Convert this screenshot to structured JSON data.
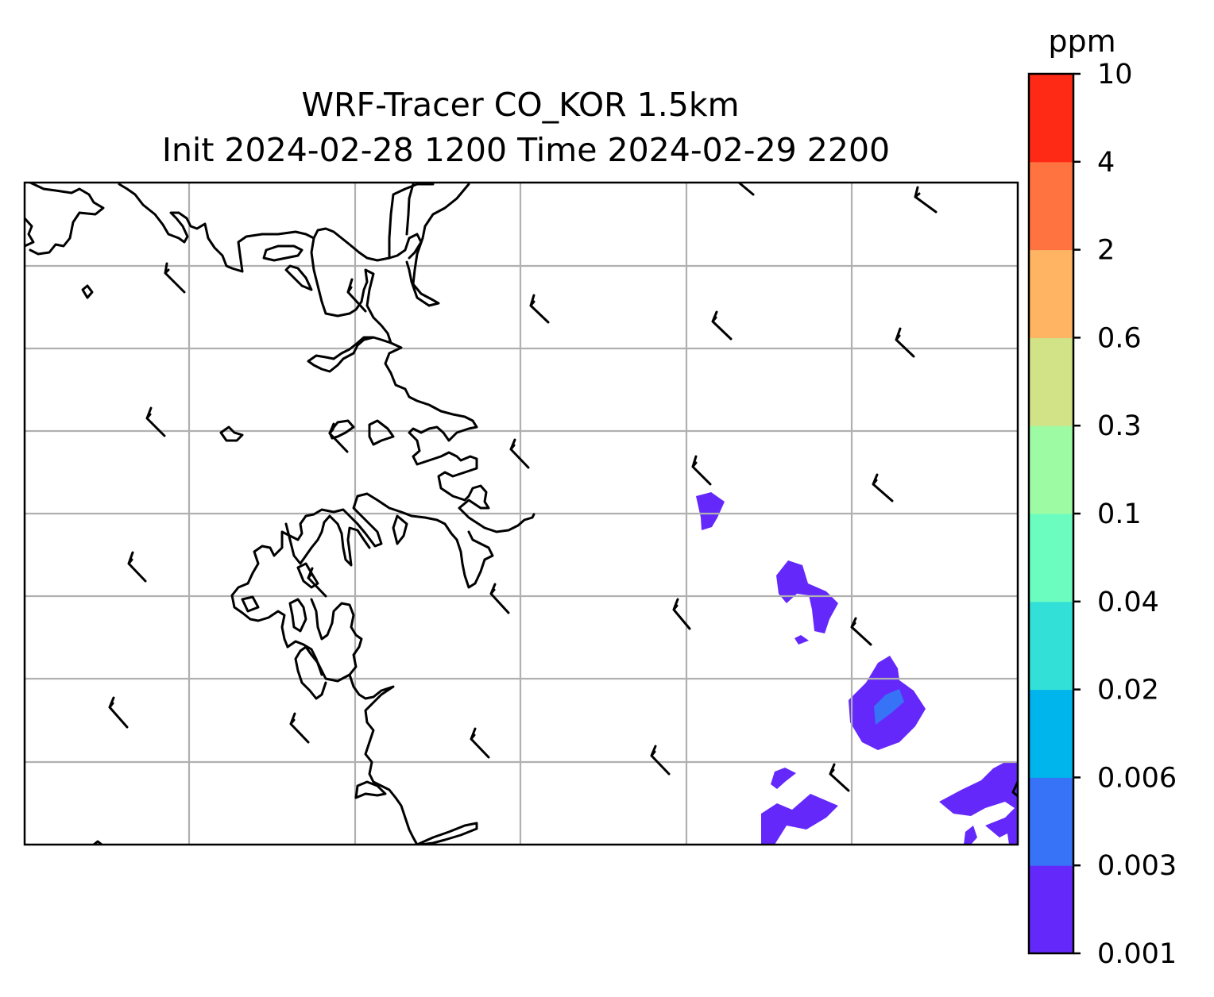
{
  "title": {
    "line1": "WRF-Tracer CO_KOR 1.5km",
    "line2": "Init 2024-02-28 1200 Time 2024-02-29 2200"
  },
  "colorbar": {
    "unit": "ppm",
    "levels": [
      "0.001",
      "0.003",
      "0.006",
      "0.02",
      "0.04",
      "0.1",
      "0.3",
      "0.6",
      "2",
      "4",
      "10"
    ],
    "colors": [
      "#6429fa",
      "#3673f7",
      "#00b4ec",
      "#33e0d7",
      "#6bfcc0",
      "#9dfca3",
      "#d1e287",
      "#feb463",
      "#ff7340",
      "#ff2a16"
    ]
  },
  "map": {
    "gridlines": true,
    "coastline_color": "#000000",
    "grid_color": "#b0b0b0"
  }
}
